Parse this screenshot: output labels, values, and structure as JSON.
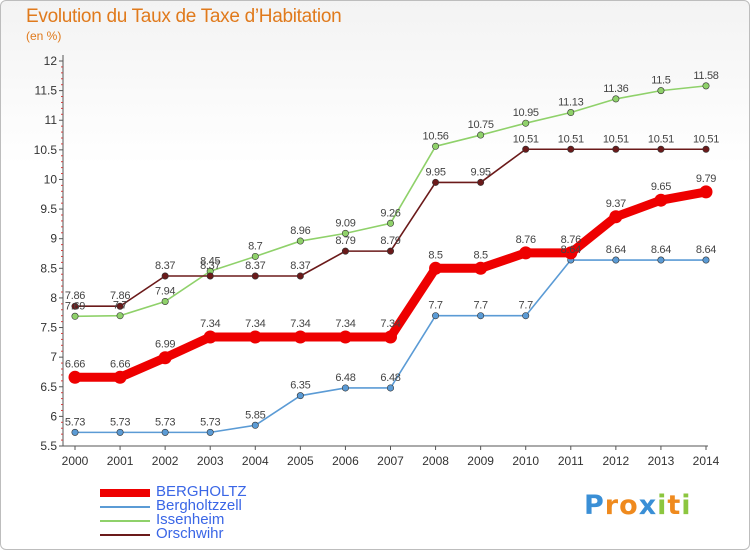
{
  "title": "Evolution du Taux de Taxe d’Habitation",
  "subtitle": "(en %)",
  "logo": [
    {
      "ch": "P",
      "color": "#3a8fd6"
    },
    {
      "ch": "r",
      "color": "#ef8a1e"
    },
    {
      "ch": "o",
      "color": "#ef8a1e"
    },
    {
      "ch": "x",
      "color": "#3a8fd6"
    },
    {
      "ch": "i",
      "color": "#8cc63f"
    },
    {
      "ch": "t",
      "color": "#ef8a1e"
    },
    {
      "ch": "i",
      "color": "#8cc63f"
    }
  ],
  "chart_data": {
    "type": "line",
    "title": "Evolution du Taux de Taxe d’Habitation",
    "subtitle": "(en %)",
    "xlabel": "",
    "ylabel": "",
    "x": [
      "2000",
      "2001",
      "2002",
      "2003",
      "2004",
      "2005",
      "2006",
      "2007",
      "2008",
      "2009",
      "2010",
      "2011",
      "2012",
      "2013",
      "2014"
    ],
    "ylim": [
      5.5,
      12
    ],
    "yticks": [
      "5.5",
      "6",
      "6.5",
      "7",
      "7.5",
      "8",
      "8.5",
      "9",
      "9.5",
      "10",
      "10.5",
      "11",
      "11.5",
      "12"
    ],
    "grid": false,
    "legend_position": "bottom-left",
    "series": [
      {
        "name": "BERGHOLTZ",
        "color": "#ee0000",
        "emphasis": true,
        "values": [
          6.66,
          6.66,
          6.99,
          7.34,
          7.34,
          7.34,
          7.34,
          7.34,
          8.5,
          8.5,
          8.76,
          8.76,
          9.37,
          9.65,
          9.79
        ],
        "labels": [
          "6.66",
          "6.66",
          "6.99",
          "7.34",
          "7.34",
          "7.34",
          "7.34",
          "7.34",
          "8.5",
          "8.5",
          "8.76",
          "8.76",
          "9.37",
          "9.65",
          "9.79"
        ]
      },
      {
        "name": "Bergholtzzell",
        "color": "#5b9bd5",
        "emphasis": false,
        "values": [
          5.73,
          5.73,
          5.73,
          5.73,
          5.85,
          6.35,
          6.48,
          6.48,
          7.7,
          7.7,
          7.7,
          8.64,
          8.64,
          8.64,
          8.64
        ],
        "labels": [
          "5.73",
          "5.73",
          "5.73",
          "5.73",
          "5.85",
          "6.35",
          "6.48",
          "6.48",
          "7.7",
          "7.7",
          "7.7",
          "8.64",
          "8.64",
          "8.64",
          "8.64"
        ]
      },
      {
        "name": "Issenheim",
        "color": "#8fd16a",
        "emphasis": false,
        "values": [
          7.69,
          7.7,
          7.94,
          8.45,
          8.7,
          8.96,
          9.09,
          9.26,
          10.56,
          10.75,
          10.95,
          11.13,
          11.36,
          11.5,
          11.58
        ],
        "labels": [
          "7.69",
          "7.7",
          "7.94",
          "8.45",
          "8.7",
          "8.96",
          "9.09",
          "9.26",
          "10.56",
          "10.75",
          "10.95",
          "11.13",
          "11.36",
          "11.5",
          "11.58"
        ]
      },
      {
        "name": "Orschwihr",
        "color": "#6b1a1a",
        "emphasis": false,
        "values": [
          7.86,
          7.86,
          8.37,
          8.37,
          8.37,
          8.37,
          8.79,
          8.79,
          9.95,
          9.95,
          10.51,
          10.51,
          10.51,
          10.51,
          10.51
        ],
        "labels": [
          "7.86",
          "7.86",
          "8.37",
          "8.37",
          "8.37",
          "8.37",
          "8.79",
          "8.79",
          "9.95",
          "9.95",
          "10.51",
          "10.51",
          "10.51",
          "10.51",
          "10.51"
        ]
      }
    ]
  }
}
